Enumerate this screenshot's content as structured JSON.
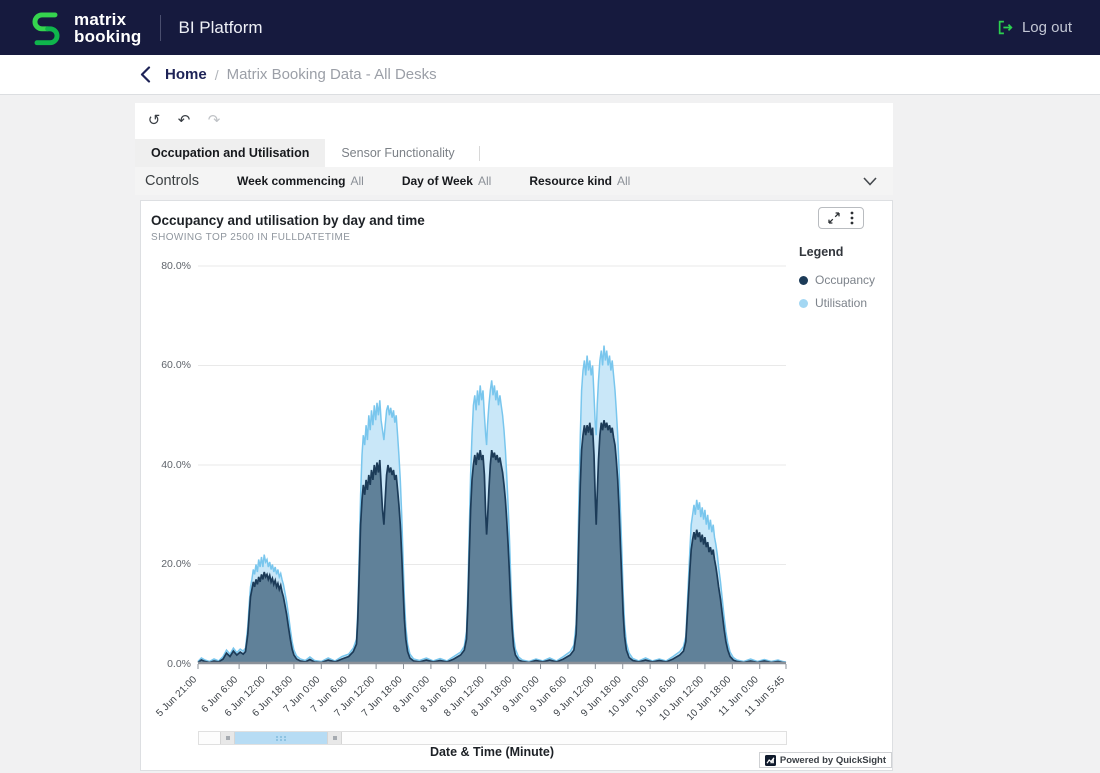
{
  "header": {
    "brand_line1": "matrix",
    "brand_line2": "booking",
    "product": "BI Platform",
    "logout_label": "Log out",
    "accent_green": "#2bd14f"
  },
  "breadcrumb": {
    "home": "Home",
    "separator": "/",
    "current": "Matrix Booking Data - All Desks"
  },
  "toolbar": {
    "reset_icon": "↺",
    "undo_icon": "↶",
    "redo_icon": "↷"
  },
  "tabs": [
    {
      "label": "Occupation and Utilisation",
      "active": true
    },
    {
      "label": "Sensor Functionality",
      "active": false
    }
  ],
  "controls": {
    "title": "Controls",
    "filters": [
      {
        "label": "Week commencing",
        "value": "All"
      },
      {
        "label": "Day of Week",
        "value": "All"
      },
      {
        "label": "Resource kind",
        "value": "All"
      }
    ]
  },
  "chart_panel": {
    "title": "Occupancy and utilisation by day and time",
    "subtitle": "SHOWING TOP 2500 IN FULLDATETIME"
  },
  "legend": {
    "title": "Legend",
    "items": [
      {
        "label": "Occupancy",
        "color": "#1c3b58"
      },
      {
        "label": "Utilisation",
        "color": "#a3d7f3"
      }
    ]
  },
  "footer": {
    "axis_title": "Date & Time (Minute)",
    "powered_by": "Powered by QuickSight"
  },
  "chart_data": {
    "type": "area",
    "title": "Occupancy and utilisation by day and time",
    "xlabel": "Date & Time (Minute)",
    "ylabel": "",
    "ylim": [
      0,
      80
    ],
    "grid": true,
    "legend_position": "right",
    "y_ticks": [
      "0.0%",
      "20.0%",
      "40.0%",
      "60.0%",
      "80.0%"
    ],
    "x_range_hours": [
      0,
      128.75
    ],
    "x_ticks": [
      {
        "t": 0,
        "label": "5 Jun 21:00"
      },
      {
        "t": 9,
        "label": "6 Jun 6:00"
      },
      {
        "t": 15,
        "label": "6 Jun 12:00"
      },
      {
        "t": 21,
        "label": "6 Jun 18:00"
      },
      {
        "t": 27,
        "label": "7 Jun 0:00"
      },
      {
        "t": 33,
        "label": "7 Jun 6:00"
      },
      {
        "t": 39,
        "label": "7 Jun 12:00"
      },
      {
        "t": 45,
        "label": "7 Jun 18:00"
      },
      {
        "t": 51,
        "label": "8 Jun 0:00"
      },
      {
        "t": 57,
        "label": "8 Jun 6:00"
      },
      {
        "t": 63,
        "label": "8 Jun 12:00"
      },
      {
        "t": 69,
        "label": "8 Jun 18:00"
      },
      {
        "t": 75,
        "label": "9 Jun 0:00"
      },
      {
        "t": 81,
        "label": "9 Jun 6:00"
      },
      {
        "t": 87,
        "label": "9 Jun 12:00"
      },
      {
        "t": 93,
        "label": "9 Jun 18:00"
      },
      {
        "t": 99,
        "label": "10 Jun 0:00"
      },
      {
        "t": 105,
        "label": "10 Jun 6:00"
      },
      {
        "t": 111,
        "label": "10 Jun 12:00"
      },
      {
        "t": 117,
        "label": "10 Jun 18:00"
      },
      {
        "t": 123,
        "label": "11 Jun 0:00"
      },
      {
        "t": 128.75,
        "label": "11 Jun 5:45"
      }
    ],
    "series_names": [
      "Occupancy",
      "Utilisation"
    ],
    "colors": {
      "occupancy_line": "#1c3b58",
      "occupancy_fill": "rgba(20,55,85,0.58)",
      "utilisation_line": "#79c6ed",
      "utilisation_fill": "#c9e7f8",
      "gridline": "#e9e9e9",
      "baseline": "#8b9199"
    },
    "points_format": [
      "hours_since_5_jun_21_00",
      "occupancy_pct",
      "utilisation_pct"
    ],
    "points": [
      [
        0,
        0.3,
        0.5
      ],
      [
        0.75,
        0.8,
        1.2
      ],
      [
        1.5,
        0.5,
        0.8
      ],
      [
        2.5,
        0.3,
        0.5
      ],
      [
        3.5,
        0.6,
        1
      ],
      [
        4.5,
        0.4,
        0.6
      ],
      [
        5.5,
        1,
        1.5
      ],
      [
        6.25,
        2.2,
        2.8
      ],
      [
        7,
        1.5,
        2
      ],
      [
        7.75,
        2.6,
        3.2
      ],
      [
        8.5,
        1.8,
        2.3
      ],
      [
        9.25,
        2.4,
        3
      ],
      [
        9.9,
        2,
        2.6
      ],
      [
        10.4,
        2.5,
        3.2
      ],
      [
        10.9,
        6,
        7.5
      ],
      [
        11.2,
        10,
        12
      ],
      [
        11.5,
        13.5,
        15.5
      ],
      [
        11.8,
        15,
        17
      ],
      [
        12.1,
        16.5,
        19
      ],
      [
        12.4,
        15.5,
        18
      ],
      [
        12.7,
        17,
        20
      ],
      [
        13,
        16,
        18.5
      ],
      [
        13.3,
        17.5,
        21
      ],
      [
        13.6,
        16.5,
        19.5
      ],
      [
        13.9,
        18,
        21.5
      ],
      [
        14.2,
        17,
        19.5
      ],
      [
        14.5,
        18.5,
        22
      ],
      [
        14.8,
        17.5,
        20.5
      ],
      [
        15.1,
        18,
        21
      ],
      [
        15.4,
        17,
        19.5
      ],
      [
        15.7,
        17.8,
        20.5
      ],
      [
        16,
        16.5,
        19
      ],
      [
        16.3,
        17.2,
        20
      ],
      [
        16.6,
        16,
        18.5
      ],
      [
        16.9,
        16.8,
        19.5
      ],
      [
        17.2,
        15.5,
        18
      ],
      [
        17.5,
        16.2,
        19
      ],
      [
        17.8,
        15,
        17.5
      ],
      [
        18.1,
        15.8,
        18.2
      ],
      [
        18.4,
        14.5,
        17
      ],
      [
        18.7,
        13.5,
        16
      ],
      [
        19,
        12,
        14.5
      ],
      [
        19.4,
        10,
        12.5
      ],
      [
        19.8,
        7.5,
        10
      ],
      [
        20.2,
        5,
        7
      ],
      [
        20.6,
        3,
        4.5
      ],
      [
        21,
        1.8,
        2.8
      ],
      [
        21.6,
        1,
        1.6
      ],
      [
        22.4,
        0.6,
        1
      ],
      [
        23.5,
        0.4,
        0.7
      ],
      [
        24.5,
        0.9,
        1.4
      ],
      [
        25.5,
        0.4,
        0.7
      ],
      [
        27,
        0.3,
        0.5
      ],
      [
        28.5,
        0.8,
        1.2
      ],
      [
        30,
        0.4,
        0.6
      ],
      [
        31.5,
        1,
        1.5
      ],
      [
        33,
        1.5,
        2
      ],
      [
        34,
        2.5,
        3.2
      ],
      [
        34.7,
        4,
        5
      ],
      [
        35,
        9,
        11
      ],
      [
        35.3,
        18,
        22
      ],
      [
        35.6,
        28,
        34
      ],
      [
        35.9,
        33,
        42
      ],
      [
        36.2,
        36,
        46
      ],
      [
        36.5,
        34,
        44
      ],
      [
        36.8,
        37,
        48
      ],
      [
        37.1,
        35,
        45
      ],
      [
        37.4,
        38,
        50
      ],
      [
        37.7,
        36,
        47
      ],
      [
        38,
        39,
        51
      ],
      [
        38.3,
        37,
        48
      ],
      [
        38.6,
        40,
        52
      ],
      [
        38.9,
        38,
        49
      ],
      [
        39.2,
        40.5,
        52.5
      ],
      [
        39.5,
        38.5,
        50
      ],
      [
        39.8,
        41,
        53
      ],
      [
        40.1,
        36,
        49
      ],
      [
        40.4,
        31,
        47
      ],
      [
        40.7,
        28,
        45
      ],
      [
        41,
        33,
        48
      ],
      [
        41.3,
        38,
        51
      ],
      [
        41.6,
        40,
        52
      ],
      [
        41.9,
        38.5,
        50
      ],
      [
        42.2,
        39.5,
        51.5
      ],
      [
        42.5,
        38,
        49.5
      ],
      [
        42.8,
        39,
        51
      ],
      [
        43.1,
        37,
        48.5
      ],
      [
        43.4,
        38,
        50
      ],
      [
        43.7,
        35,
        46
      ],
      [
        44,
        32,
        42
      ],
      [
        44.3,
        28,
        37
      ],
      [
        44.6,
        22,
        30
      ],
      [
        44.9,
        15,
        21
      ],
      [
        45.2,
        9,
        13
      ],
      [
        45.5,
        5,
        7.5
      ],
      [
        45.9,
        2.5,
        4
      ],
      [
        46.4,
        1.2,
        2
      ],
      [
        47.2,
        0.6,
        1
      ],
      [
        48.5,
        0.4,
        0.7
      ],
      [
        50,
        0.8,
        1.2
      ],
      [
        51.5,
        0.4,
        0.6
      ],
      [
        53,
        0.7,
        1.1
      ],
      [
        54.5,
        0.4,
        0.6
      ],
      [
        56,
        1,
        1.5
      ],
      [
        57.5,
        1.8,
        2.4
      ],
      [
        58.3,
        2.8,
        3.6
      ],
      [
        58.8,
        5,
        6.5
      ],
      [
        59.1,
        12,
        15
      ],
      [
        59.4,
        22,
        27
      ],
      [
        59.7,
        31,
        38
      ],
      [
        60,
        37,
        46
      ],
      [
        60.3,
        40,
        52
      ],
      [
        60.6,
        42,
        54
      ],
      [
        60.9,
        40,
        51
      ],
      [
        61.2,
        42.5,
        55
      ],
      [
        61.5,
        41,
        52
      ],
      [
        61.8,
        43,
        56
      ],
      [
        62.1,
        41,
        53
      ],
      [
        62.4,
        42,
        55
      ],
      [
        62.7,
        38,
        50
      ],
      [
        63,
        30,
        46
      ],
      [
        63.2,
        26,
        44
      ],
      [
        63.4,
        29,
        48
      ],
      [
        63.7,
        35,
        52
      ],
      [
        64,
        40,
        55
      ],
      [
        64.3,
        43,
        57
      ],
      [
        64.6,
        41.5,
        54
      ],
      [
        64.9,
        42.5,
        56
      ],
      [
        65.2,
        41,
        53
      ],
      [
        65.5,
        42,
        55
      ],
      [
        65.8,
        40.5,
        52
      ],
      [
        66.1,
        41.5,
        54
      ],
      [
        66.4,
        40,
        52
      ],
      [
        66.7,
        38.5,
        50
      ],
      [
        67,
        36,
        47
      ],
      [
        67.3,
        33,
        43
      ],
      [
        67.6,
        29,
        38
      ],
      [
        67.9,
        24,
        32
      ],
      [
        68.2,
        18,
        25
      ],
      [
        68.5,
        12,
        17
      ],
      [
        68.8,
        7,
        10
      ],
      [
        69.1,
        3.5,
        5.5
      ],
      [
        69.5,
        1.8,
        3
      ],
      [
        70.2,
        0.8,
        1.4
      ],
      [
        71,
        0.5,
        0.8
      ],
      [
        72.5,
        0.3,
        0.5
      ],
      [
        74,
        0.7,
        1
      ],
      [
        75.5,
        0.4,
        0.6
      ],
      [
        77,
        0.8,
        1.2
      ],
      [
        78.5,
        0.4,
        0.6
      ],
      [
        80,
        1,
        1.5
      ],
      [
        81.5,
        1.8,
        2.5
      ],
      [
        82.3,
        2.8,
        3.8
      ],
      [
        82.8,
        6,
        8
      ],
      [
        83.1,
        14,
        18
      ],
      [
        83.4,
        26,
        33
      ],
      [
        83.7,
        36,
        46
      ],
      [
        84,
        43,
        55
      ],
      [
        84.3,
        46,
        59
      ],
      [
        84.6,
        48,
        61
      ],
      [
        84.9,
        46,
        58
      ],
      [
        85.2,
        48,
        62
      ],
      [
        85.5,
        46.5,
        59
      ],
      [
        85.8,
        48.5,
        61
      ],
      [
        86.1,
        46,
        58
      ],
      [
        86.4,
        47.5,
        60
      ],
      [
        86.7,
        42,
        54
      ],
      [
        87,
        33,
        48
      ],
      [
        87.2,
        28,
        46
      ],
      [
        87.4,
        34,
        52
      ],
      [
        87.7,
        41,
        57
      ],
      [
        88,
        46,
        61
      ],
      [
        88.3,
        48.5,
        63
      ],
      [
        88.6,
        47,
        60
      ],
      [
        88.9,
        49,
        64
      ],
      [
        89.2,
        47.5,
        61
      ],
      [
        89.5,
        48.5,
        63
      ],
      [
        89.8,
        47,
        60
      ],
      [
        90.1,
        48,
        62
      ],
      [
        90.4,
        46.5,
        59
      ],
      [
        90.7,
        47.5,
        61
      ],
      [
        91,
        45.5,
        58
      ],
      [
        91.3,
        44,
        55
      ],
      [
        91.6,
        41,
        51
      ],
      [
        91.9,
        37,
        46
      ],
      [
        92.2,
        31,
        39
      ],
      [
        92.5,
        24,
        31
      ],
      [
        92.8,
        17,
        23
      ],
      [
        93.1,
        10,
        14
      ],
      [
        93.4,
        5.5,
        8
      ],
      [
        93.8,
        2.8,
        4.2
      ],
      [
        94.4,
        1.3,
        2.2
      ],
      [
        95.2,
        0.7,
        1.1
      ],
      [
        96.5,
        0.4,
        0.6
      ],
      [
        98,
        0.8,
        1.2
      ],
      [
        99.5,
        0.4,
        0.6
      ],
      [
        101,
        0.7,
        1
      ],
      [
        102.5,
        0.4,
        0.6
      ],
      [
        104,
        1,
        1.5
      ],
      [
        105.5,
        1.8,
        2.5
      ],
      [
        106.3,
        2.6,
        3.5
      ],
      [
        106.8,
        4.5,
        5.5
      ],
      [
        107.1,
        9,
        11
      ],
      [
        107.4,
        14,
        17
      ],
      [
        107.7,
        19,
        23
      ],
      [
        108,
        23,
        28
      ],
      [
        108.3,
        25,
        30
      ],
      [
        108.6,
        26.5,
        32
      ],
      [
        108.9,
        25,
        30
      ],
      [
        109.2,
        27,
        33
      ],
      [
        109.5,
        25.5,
        31
      ],
      [
        109.8,
        26.5,
        32.5
      ],
      [
        110.1,
        24.5,
        29.5
      ],
      [
        110.4,
        26,
        31.5
      ],
      [
        110.7,
        24,
        29
      ],
      [
        111,
        25.5,
        31
      ],
      [
        111.3,
        23.5,
        28
      ],
      [
        111.6,
        24.5,
        30
      ],
      [
        111.9,
        22.5,
        27
      ],
      [
        112.2,
        23.5,
        29
      ],
      [
        112.5,
        22,
        26.5
      ],
      [
        112.8,
        23,
        28
      ],
      [
        113.1,
        21,
        25.5
      ],
      [
        113.4,
        19.5,
        24
      ],
      [
        113.7,
        17.5,
        22
      ],
      [
        114,
        15.5,
        19.5
      ],
      [
        114.4,
        13,
        16.5
      ],
      [
        114.8,
        10,
        13
      ],
      [
        115.2,
        7,
        9.5
      ],
      [
        115.6,
        4.5,
        6.5
      ],
      [
        116,
        2.8,
        4.2
      ],
      [
        116.5,
        1.5,
        2.4
      ],
      [
        117.2,
        0.8,
        1.3
      ],
      [
        118,
        0.5,
        0.8
      ],
      [
        119.5,
        0.3,
        0.5
      ],
      [
        121,
        0.6,
        1
      ],
      [
        122.5,
        0.3,
        0.5
      ],
      [
        124,
        0.6,
        0.9
      ],
      [
        125.5,
        0.3,
        0.5
      ],
      [
        127,
        0.5,
        0.8
      ],
      [
        128,
        0.3,
        0.5
      ],
      [
        128.75,
        0.2,
        0.4
      ]
    ]
  }
}
